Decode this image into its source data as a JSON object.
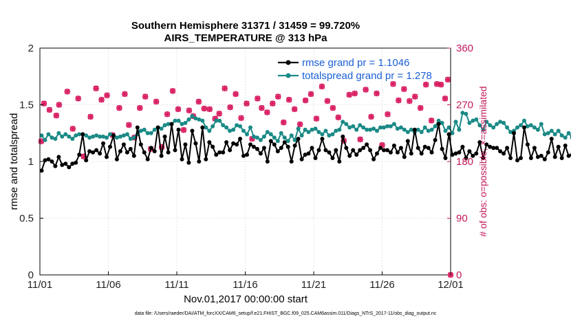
{
  "chart_data": {
    "type": "line",
    "title": "Southern Hemisphere 31371 / 31459 = 99.720%",
    "subtitle": "AIRS_TEMPERATURE @ 313 hPa",
    "xlabel": "Nov.01,2017 00:00:00 start",
    "ylabel": "rmse and totalspread",
    "y2label": "# of obs: o=possible; ×=assimilated",
    "x_tick_labels": [
      "11/01",
      "11/06",
      "11/11",
      "11/16",
      "11/21",
      "11/26",
      "12/01"
    ],
    "x_tick_days": [
      0,
      5,
      10,
      15,
      20,
      25,
      30
    ],
    "xlim": [
      0,
      30
    ],
    "ylim": [
      0,
      2
    ],
    "y_ticks": [
      "0",
      "0.5",
      "1",
      "1.5",
      "2"
    ],
    "y2lim": [
      0,
      360
    ],
    "y2_ticks": [
      "0",
      "90",
      "180",
      "270",
      "360"
    ],
    "legend": [
      {
        "name": "rmse grand pr = 1.1046",
        "color": "#000000"
      },
      {
        "name": "totalspread grand pr = 1.278",
        "color": "#1a8a86"
      }
    ],
    "x_step_days": 0.25,
    "series": [
      {
        "name": "rmse",
        "color": "#000000",
        "values": [
          0.92,
          1.01,
          1.02,
          1.0,
          0.96,
          1.04,
          0.97,
          0.98,
          0.95,
          0.98,
          0.99,
          1.06,
          1.24,
          1.01,
          1.09,
          1.08,
          1.1,
          1.07,
          1.16,
          1.04,
          1.13,
          1.23,
          1.02,
          1.09,
          1.15,
          1.08,
          1.11,
          1.05,
          1.3,
          1.15,
          1.08,
          1.02,
          1.12,
          1.09,
          1.3,
          1.05,
          1.22,
          1.08,
          1.33,
          1.1,
          1.28,
          1.02,
          1.15,
          0.99,
          1.27,
          1.16,
          1.0,
          1.3,
          1.02,
          1.17,
          1.13,
          1.06,
          1.08,
          1.08,
          1.17,
          1.1,
          1.16,
          1.15,
          1.2,
          1.05,
          1.06,
          1.15,
          1.13,
          1.11,
          1.07,
          1.12,
          1.0,
          1.18,
          1.15,
          1.09,
          1.12,
          1.17,
          1.13,
          1.0,
          1.14,
          1.2,
          1.02,
          1.06,
          1.07,
          1.12,
          1.03,
          1.1,
          1.2,
          1.1,
          1.08,
          1.03,
          1.1,
          1.0,
          1.22,
          1.12,
          1.05,
          1.1,
          1.06,
          1.1,
          1.12,
          1.15,
          1.1,
          1.02,
          1.07,
          1.12,
          1.1,
          1.1,
          1.08,
          1.14,
          1.08,
          1.12,
          1.04,
          1.18,
          1.07,
          1.28,
          1.12,
          1.07,
          1.13,
          1.12,
          1.08,
          1.19,
          1.33,
          1.11,
          1.03,
          1.24,
          1.06,
          1.07,
          1.08,
          1.13,
          1.03,
          1.09,
          1.05,
          1.07,
          1.17,
          1.03,
          1.15,
          1.13,
          1.12,
          1.12,
          1.09,
          1.07,
          1.12,
          1.03,
          1.25,
          1.01,
          1.03,
          1.3,
          1.15,
          1.03,
          1.12,
          1.04,
          1.05,
          1.02,
          1.08,
          1.2,
          1.04,
          1.13,
          1.03,
          1.14,
          1.05,
          1.06,
          1.1,
          1.16,
          1.1,
          1.06,
          1.03,
          1.14,
          1.08,
          1.06,
          1.04,
          1.05,
          1.03,
          1.14,
          1.11,
          1.04,
          1.01,
          1.21,
          1.1,
          1.07,
          1.05,
          1.08,
          1.11
        ]
      },
      {
        "name": "totalspread",
        "color": "#1a8a86",
        "values": [
          1.23,
          1.19,
          1.24,
          1.21,
          1.2,
          1.25,
          1.22,
          1.24,
          1.22,
          1.2,
          1.23,
          1.24,
          1.24,
          1.23,
          1.21,
          1.22,
          1.23,
          1.22,
          1.22,
          1.21,
          1.24,
          1.23,
          1.21,
          1.22,
          1.23,
          1.24,
          1.2,
          1.21,
          1.24,
          1.27,
          1.28,
          1.25,
          1.25,
          1.28,
          1.3,
          1.29,
          1.32,
          1.33,
          1.33,
          1.36,
          1.36,
          1.33,
          1.34,
          1.37,
          1.4,
          1.38,
          1.37,
          1.36,
          1.3,
          1.27,
          1.31,
          1.36,
          1.36,
          1.32,
          1.3,
          1.27,
          1.28,
          1.32,
          1.31,
          1.27,
          1.24,
          1.3,
          1.22,
          1.21,
          1.19,
          1.22,
          1.26,
          1.24,
          1.21,
          1.18,
          1.25,
          1.21,
          1.18,
          1.23,
          1.19,
          1.29,
          1.23,
          1.28,
          1.26,
          1.28,
          1.29,
          1.26,
          1.24,
          1.27,
          1.23,
          1.24,
          1.27,
          1.28,
          1.35,
          1.33,
          1.3,
          1.31,
          1.28,
          1.32,
          1.3,
          1.28,
          1.28,
          1.29,
          1.27,
          1.3,
          1.3,
          1.31,
          1.31,
          1.33,
          1.29,
          1.3,
          1.28,
          1.26,
          1.28,
          1.26,
          1.28,
          1.26,
          1.3,
          1.27,
          1.28,
          1.31,
          1.36,
          1.34,
          1.27,
          1.3,
          1.25,
          1.35,
          1.28,
          1.43,
          1.42,
          1.34,
          1.36,
          1.37,
          1.32,
          1.28,
          1.35,
          1.32,
          1.3,
          1.33,
          1.35,
          1.34,
          1.3,
          1.26,
          1.27,
          1.3,
          1.32,
          1.36,
          1.31,
          1.32,
          1.3,
          1.28,
          1.33,
          1.24,
          1.25,
          1.27,
          1.24,
          1.27,
          1.23,
          1.21,
          1.25,
          1.21,
          1.26,
          1.23,
          1.22,
          1.29,
          1.23,
          1.24,
          1.23,
          1.26,
          1.27,
          1.25,
          1.29,
          1.27,
          1.33,
          1.28,
          1.28,
          1.3,
          1.29,
          1.4,
          1.31,
          1.25,
          1.33,
          1.26,
          1.3,
          1.33,
          1.27,
          1.33
        ]
      },
      {
        "name": "# of obs possible / assimilated",
        "color": "#d81b60",
        "axis": "right",
        "x_days": [
          0.1,
          0.3,
          0.7,
          1.2,
          1.4,
          2.0,
          2.4,
          2.8,
          3.2,
          3.7,
          4.1,
          4.5,
          4.9,
          5.3,
          5.8,
          6.2,
          6.5,
          6.9,
          7.3,
          7.7,
          8.1,
          8.5,
          8.9,
          9.3,
          9.7,
          10.1,
          10.5,
          10.9,
          11.2,
          11.6,
          12.0,
          12.4,
          12.8,
          13.1,
          13.5,
          13.9,
          14.3,
          14.7,
          15.1,
          15.5,
          15.9,
          16.2,
          16.6,
          17.0,
          17.4,
          17.8,
          18.2,
          18.6,
          19.0,
          19.4,
          19.8,
          20.2,
          20.6,
          21.0,
          21.4,
          21.8,
          22.2,
          22.6,
          23.0,
          23.4,
          23.8,
          24.2,
          24.6,
          25.0,
          25.4,
          25.8,
          26.2,
          26.6,
          27.0,
          27.4,
          27.8,
          28.2,
          28.6,
          29.0,
          29.3,
          29.6,
          29.8,
          30.0
        ],
        "values": [
          212,
          272,
          262,
          253,
          270,
          291,
          232,
          280,
          188,
          251,
          296,
          278,
          285,
          222,
          265,
          287,
          238,
          218,
          265,
          283,
          200,
          275,
          203,
          255,
          292,
          263,
          230,
          261,
          252,
          275,
          264,
          263,
          248,
          256,
          296,
          266,
          287,
          249,
          272,
          216,
          280,
          265,
          258,
          272,
          283,
          242,
          278,
          263,
          239,
          277,
          287,
          248,
          299,
          276,
          265,
          250,
          213,
          286,
          288,
          215,
          294,
          251,
          288,
          206,
          255,
          303,
          277,
          295,
          276,
          283,
          265,
          302,
          245,
          303,
          302,
          280,
          310,
          0
        ]
      }
    ]
  },
  "footer": {
    "data_file": "data file: /Users/raeder/DAI/ATM_forcXX/CAM6_setup/f.e21.FHIST_BGC.f09_025.CAM6assim.011/Diags_NTrS_2017-11/obs_diag_output.nc"
  }
}
